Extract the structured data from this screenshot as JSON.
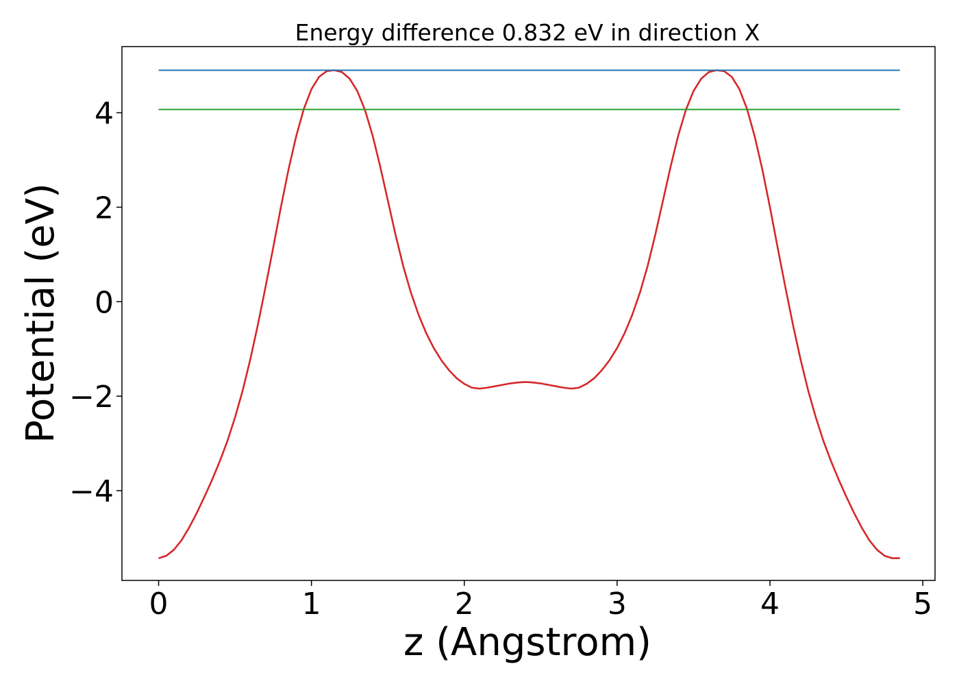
{
  "chart_data": {
    "type": "line",
    "title": "Energy difference 0.832 eV in direction X",
    "xlabel": "z (Angstrom)",
    "ylabel": "Potential (eV)",
    "xlim": [
      -0.24,
      5.08
    ],
    "ylim": [
      -5.9,
      5.4
    ],
    "xticks": [
      0,
      1,
      2,
      3,
      4,
      5
    ],
    "xtick_labels": [
      "0",
      "1",
      "2",
      "3",
      "4",
      "5"
    ],
    "yticks": [
      -4,
      -2,
      0,
      2,
      4
    ],
    "ytick_labels": [
      "−4",
      "−2",
      "0",
      "2",
      "4"
    ],
    "grid": false,
    "legend": "none",
    "series": [
      {
        "color": "#d62728",
        "x": [
          0.0,
          0.05,
          0.1,
          0.15,
          0.2,
          0.25,
          0.3,
          0.35,
          0.4,
          0.45,
          0.5,
          0.55,
          0.6,
          0.65,
          0.7,
          0.75,
          0.8,
          0.85,
          0.9,
          0.95,
          1.0,
          1.05,
          1.1,
          1.15,
          1.2,
          1.25,
          1.3,
          1.35,
          1.4,
          1.45,
          1.5,
          1.55,
          1.6,
          1.65,
          1.7,
          1.75,
          1.8,
          1.85,
          1.9,
          1.95,
          2.0,
          2.05,
          2.1,
          2.15,
          2.2,
          2.25,
          2.3,
          2.35,
          2.4,
          2.45,
          2.5,
          2.55,
          2.6,
          2.65,
          2.7,
          2.75,
          2.8,
          2.85,
          2.9,
          2.95,
          3.0,
          3.05,
          3.1,
          3.15,
          3.2,
          3.25,
          3.3,
          3.35,
          3.4,
          3.45,
          3.5,
          3.55,
          3.6,
          3.65,
          3.7,
          3.75,
          3.8,
          3.85,
          3.9,
          3.95,
          4.0,
          4.05,
          4.1,
          4.15,
          4.2,
          4.25,
          4.3,
          4.35,
          4.4,
          4.45,
          4.5,
          4.55,
          4.6,
          4.65,
          4.7,
          4.75,
          4.8,
          4.85
        ],
        "values": [
          -5.43,
          -5.38,
          -5.25,
          -5.05,
          -4.78,
          -4.47,
          -4.13,
          -3.77,
          -3.38,
          -2.95,
          -2.45,
          -1.88,
          -1.22,
          -0.48,
          0.32,
          1.15,
          2.0,
          2.8,
          3.5,
          4.08,
          4.5,
          4.76,
          4.88,
          4.9,
          4.86,
          4.72,
          4.46,
          4.06,
          3.52,
          2.86,
          2.14,
          1.42,
          0.76,
          0.2,
          -0.27,
          -0.66,
          -0.98,
          -1.24,
          -1.45,
          -1.62,
          -1.74,
          -1.82,
          -1.84,
          -1.82,
          -1.79,
          -1.76,
          -1.73,
          -1.71,
          -1.7,
          -1.71,
          -1.73,
          -1.76,
          -1.79,
          -1.82,
          -1.84,
          -1.82,
          -1.74,
          -1.62,
          -1.45,
          -1.24,
          -0.98,
          -0.66,
          -0.27,
          0.2,
          0.76,
          1.42,
          2.14,
          2.86,
          3.52,
          4.06,
          4.46,
          4.72,
          4.86,
          4.9,
          4.88,
          4.76,
          4.5,
          4.08,
          3.5,
          2.8,
          2.0,
          1.15,
          0.32,
          -0.48,
          -1.22,
          -1.88,
          -2.45,
          -2.95,
          -3.38,
          -3.77,
          -4.13,
          -4.47,
          -4.78,
          -5.05,
          -5.25,
          -5.38,
          -5.43,
          -5.43
        ]
      },
      {
        "color": "#1f77b4",
        "x": [
          0.0,
          4.85
        ],
        "values": [
          4.9,
          4.9
        ]
      },
      {
        "color": "#2ca02c",
        "x": [
          0.0,
          4.85
        ],
        "values": [
          4.07,
          4.07
        ]
      }
    ]
  }
}
